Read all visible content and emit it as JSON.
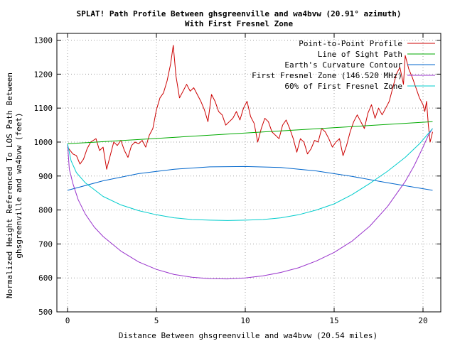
{
  "chart_data": {
    "type": "line",
    "title_line1": "SPLAT! Path Profile Between ghsgreenville and wa4bvw (20.91° azimuth)",
    "title_line2": "With First Fresnel Zone",
    "xlabel": "Distance Between ghsgreenville and wa4bvw (20.54 miles)",
    "ylabel_line1": "Normalized Height Referenced To LOS Path Between",
    "ylabel_line2": "ghsgreenville and wa4bvw (feet)",
    "xlim": [
      -0.6,
      21.0
    ],
    "ylim": [
      500,
      1320
    ],
    "x_ticks": [
      0,
      5,
      10,
      15,
      20
    ],
    "y_ticks": [
      500,
      600,
      700,
      800,
      900,
      1000,
      1100,
      1200,
      1300
    ],
    "grid": true,
    "legend_position": "top-right",
    "series": [
      {
        "name": "Point-to-Point Profile",
        "color": "#cc0000",
        "x": [
          0.0,
          0.3,
          0.5,
          0.7,
          0.9,
          1.1,
          1.3,
          1.6,
          1.8,
          2.0,
          2.2,
          2.4,
          2.6,
          2.8,
          3.0,
          3.2,
          3.4,
          3.6,
          3.8,
          4.0,
          4.2,
          4.4,
          4.6,
          4.8,
          5.0,
          5.2,
          5.4,
          5.6,
          5.8,
          5.95,
          6.1,
          6.3,
          6.5,
          6.7,
          6.9,
          7.1,
          7.3,
          7.5,
          7.7,
          7.9,
          8.1,
          8.3,
          8.5,
          8.7,
          8.9,
          9.1,
          9.3,
          9.5,
          9.7,
          9.9,
          10.1,
          10.3,
          10.5,
          10.7,
          10.9,
          11.1,
          11.3,
          11.5,
          11.7,
          11.9,
          12.1,
          12.3,
          12.5,
          12.7,
          12.9,
          13.1,
          13.3,
          13.5,
          13.7,
          13.9,
          14.1,
          14.3,
          14.5,
          14.7,
          14.9,
          15.1,
          15.3,
          15.5,
          15.7,
          15.9,
          16.1,
          16.3,
          16.5,
          16.7,
          16.9,
          17.1,
          17.3,
          17.5,
          17.7,
          17.9,
          18.1,
          18.3,
          18.5,
          18.7,
          18.9,
          19.0,
          19.2,
          19.4,
          19.6,
          19.8,
          20.0,
          20.1,
          20.2,
          20.3,
          20.4,
          20.54
        ],
        "y": [
          985,
          965,
          960,
          935,
          950,
          980,
          1000,
          1010,
          975,
          985,
          920,
          960,
          1000,
          990,
          1005,
          975,
          955,
          990,
          1000,
          995,
          1005,
          985,
          1020,
          1040,
          1095,
          1130,
          1145,
          1180,
          1230,
          1285,
          1195,
          1130,
          1150,
          1170,
          1150,
          1160,
          1140,
          1120,
          1095,
          1060,
          1140,
          1120,
          1090,
          1080,
          1050,
          1060,
          1070,
          1090,
          1065,
          1100,
          1120,
          1075,
          1055,
          1000,
          1040,
          1070,
          1060,
          1030,
          1020,
          1010,
          1050,
          1065,
          1040,
          1010,
          970,
          1010,
          1000,
          965,
          980,
          1005,
          1000,
          1040,
          1030,
          1010,
          985,
          1000,
          1010,
          960,
          990,
          1030,
          1060,
          1080,
          1060,
          1040,
          1085,
          1110,
          1070,
          1100,
          1080,
          1100,
          1120,
          1160,
          1200,
          1220,
          1170,
          1255,
          1215,
          1190,
          1160,
          1130,
          1110,
          1090,
          1120,
          1050,
          1000,
          1030
        ]
      },
      {
        "name": "Line of Sight Path",
        "color": "#00aa00",
        "x": [
          0.0,
          20.54
        ],
        "y": [
          995,
          1060
        ]
      },
      {
        "name": "Earth's Curvature Contour",
        "color": "#0066cc",
        "x": [
          0.0,
          2.0,
          4.0,
          6.0,
          8.0,
          10.0,
          12.0,
          14.0,
          16.0,
          18.0,
          20.54
        ],
        "y": [
          858,
          886,
          907,
          920,
          927,
          928,
          925,
          915,
          899,
          880,
          858
        ]
      },
      {
        "name": "First Fresnel Zone (146.520 MHz)",
        "color": "#9933cc",
        "x": [
          0.0,
          0.1,
          0.3,
          0.6,
          1.0,
          1.5,
          2.0,
          3.0,
          4.0,
          5.0,
          6.0,
          7.0,
          8.0,
          9.0,
          10.0,
          11.0,
          12.0,
          13.0,
          14.0,
          15.0,
          16.0,
          17.0,
          18.0,
          19.0,
          19.5,
          20.0,
          20.3,
          20.54
        ],
        "y": [
          995,
          920,
          878,
          830,
          788,
          750,
          722,
          679,
          647,
          625,
          610,
          602,
          598,
          597,
          600,
          606,
          616,
          630,
          650,
          675,
          708,
          752,
          810,
          884,
          930,
          985,
          1020,
          1040
        ]
      },
      {
        "name": "60% of First Fresnel Zone",
        "color": "#00cccc",
        "x": [
          0.0,
          0.2,
          0.5,
          1.0,
          2.0,
          3.0,
          4.0,
          5.0,
          6.0,
          7.0,
          8.0,
          9.0,
          10.0,
          11.0,
          12.0,
          13.0,
          14.0,
          15.0,
          16.0,
          17.0,
          18.0,
          19.0,
          19.8,
          20.3,
          20.54
        ],
        "y": [
          995,
          945,
          910,
          880,
          840,
          815,
          798,
          786,
          777,
          772,
          770,
          769,
          770,
          772,
          777,
          786,
          800,
          818,
          845,
          878,
          914,
          955,
          995,
          1025,
          1040
        ]
      }
    ]
  }
}
